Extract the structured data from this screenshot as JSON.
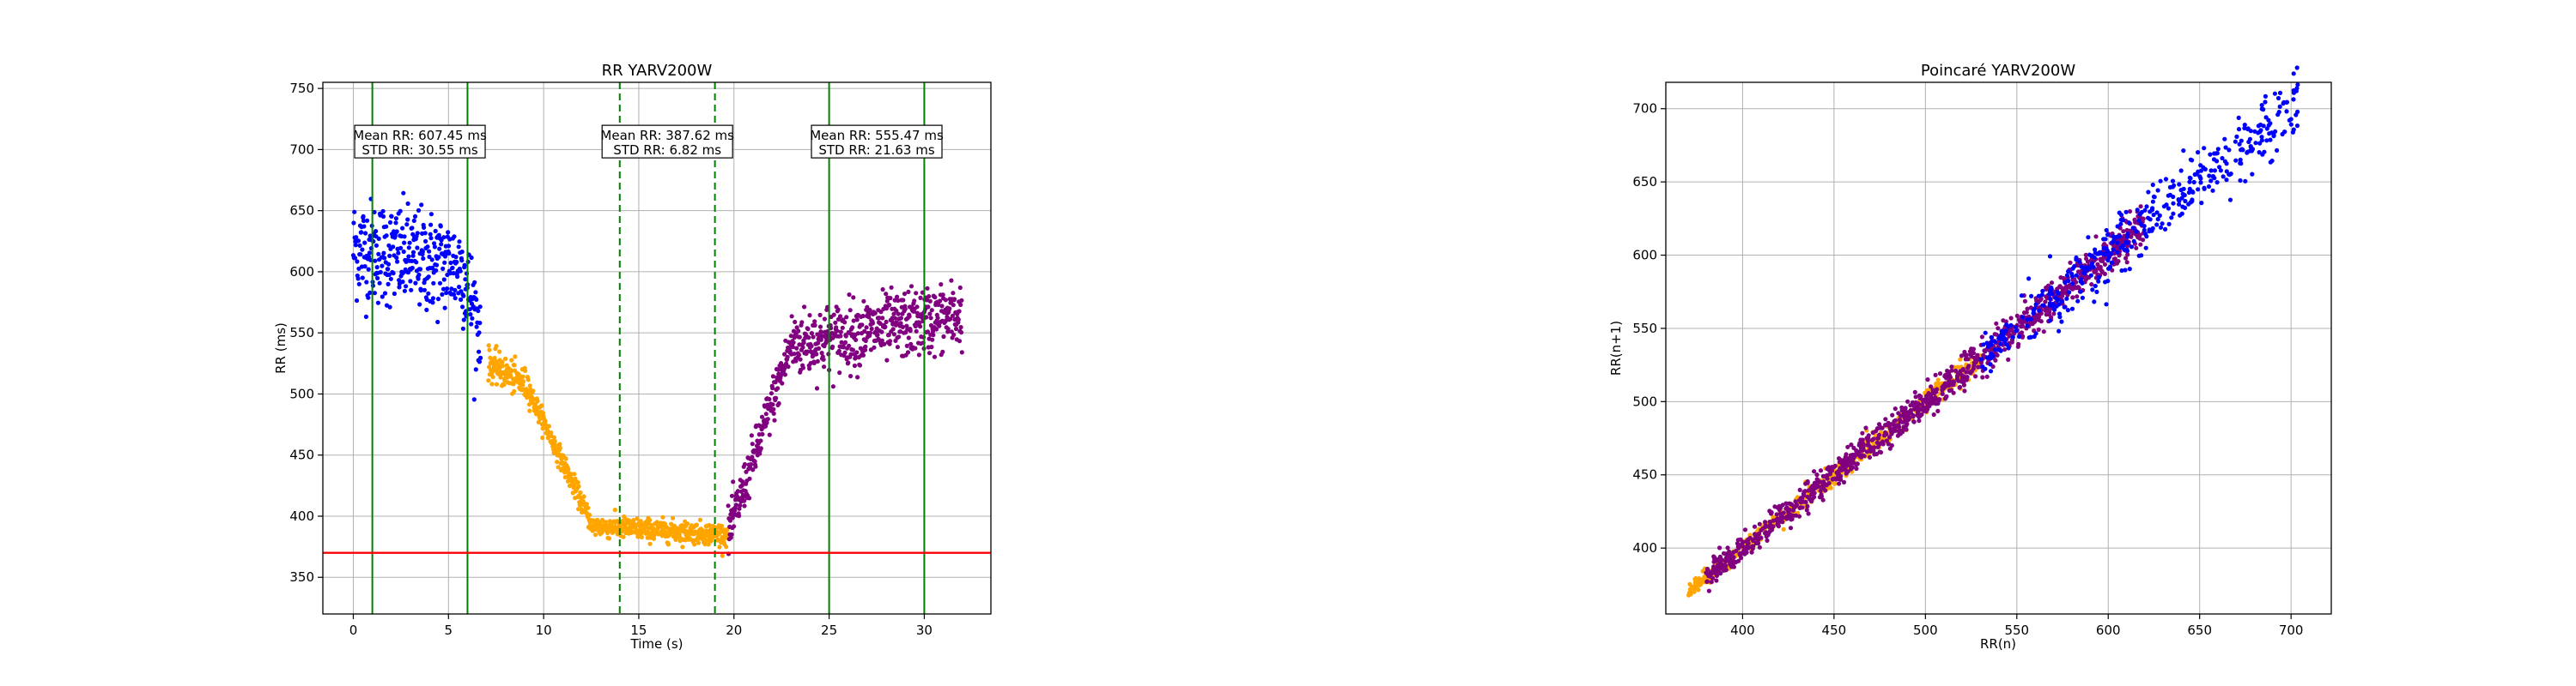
{
  "chart_data": [
    {
      "type": "scatter",
      "title": "RR YARV200W",
      "xlabel": "Time (s)",
      "ylabel": "RR (ms)",
      "xlim": [
        -1.6,
        33.5
      ],
      "ylim": [
        320,
        755
      ],
      "xticks": [
        0,
        5,
        10,
        15,
        20,
        25,
        30
      ],
      "yticks": [
        350,
        400,
        450,
        500,
        550,
        600,
        650,
        700,
        750
      ],
      "grid": true,
      "series": [
        {
          "color": "#0000ff",
          "segments": [
            {
              "t": [
                0,
                6.7
              ],
              "mean": [
                620,
                600
              ],
              "amp": 38,
              "trend": [
                600,
                540
              ]
            }
          ]
        },
        {
          "color": "#ffa500",
          "segments": [
            {
              "t": [
                7.1,
                9.3
              ],
              "mean": [
                525,
                505
              ],
              "amp": 12
            },
            {
              "t": [
                9.3,
                12.5
              ],
              "mean": [
                500,
                395
              ],
              "amp": 8
            },
            {
              "t": [
                12.5,
                19.7
              ],
              "mean": [
                392,
                385
              ],
              "amp": 8
            }
          ]
        },
        {
          "color": "#800080",
          "segments": [
            {
              "t": [
                19.7,
                23.0
              ],
              "mean": [
                385,
                540
              ],
              "amp": 18
            },
            {
              "t": [
                23.0,
                32.0
              ],
              "mean": [
                540,
                565
              ],
              "amp": 25
            }
          ]
        }
      ],
      "vlines_solid": [
        1,
        6,
        25,
        30
      ],
      "vlines_dashed": [
        14,
        19
      ],
      "hline": 370,
      "colors": {
        "vline": "#008000",
        "hline": "#ff0000",
        "grid": "#b0b0b0"
      },
      "annotations": [
        {
          "line1": "Mean RR: 607.45 ms",
          "line2": "STD RR: 30.55 ms",
          "x": 3.5,
          "y": 703
        },
        {
          "line1": "Mean RR: 387.62 ms",
          "line2": "STD RR: 6.82 ms",
          "x": 16.5,
          "y": 703
        },
        {
          "line1": "Mean RR: 555.47 ms",
          "line2": "STD RR: 21.63 ms",
          "x": 27.5,
          "y": 703
        }
      ]
    },
    {
      "type": "scatter",
      "title": "Poincaré YARV200W",
      "xlabel": "RR(n)",
      "ylabel": "RR(n+1)",
      "xlim": [
        358,
        722
      ],
      "ylim": [
        355,
        718
      ],
      "xticks": [
        400,
        450,
        500,
        550,
        600,
        650,
        700
      ],
      "yticks": [
        400,
        450,
        500,
        550,
        600,
        650,
        700
      ],
      "grid": true,
      "series": [
        {
          "color": "#ffa500",
          "range": [
            370,
            530
          ],
          "spread": 6
        },
        {
          "color": "#800080",
          "range": [
            380,
            620
          ],
          "spread": 10
        },
        {
          "color": "#0000ff",
          "range": [
            530,
            705
          ],
          "spread": 18
        }
      ]
    }
  ]
}
